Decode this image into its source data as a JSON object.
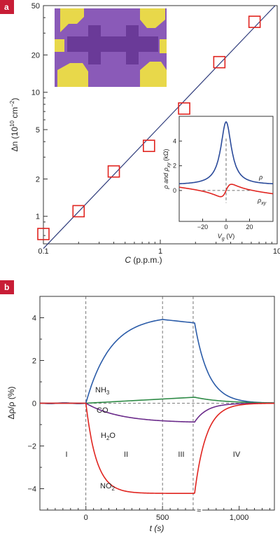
{
  "colors": {
    "badge": "#c81d36",
    "squares": "#e0241f",
    "fitline": "#2d3a7a",
    "nh3": "#2a5ba8",
    "co": "#2e8a46",
    "h2o": "#6a2a8a",
    "no2": "#e0241f",
    "inset_rho": "#2a4a9a",
    "inset_rhoxy": "#e0241f",
    "photo_bg": "#8a5ab8",
    "photo_dark": "#6a3a98",
    "photo_gold": "#e8d84a"
  },
  "chart_data": [
    {
      "panel": "a",
      "type": "scatter",
      "xscale": "log",
      "yscale": "log",
      "xlim": [
        0.1,
        10
      ],
      "ylim": [
        0.6,
        50
      ],
      "xlabel_main": "C",
      "xlabel_unit": "(p.p.m.)",
      "ylabel_main": "Δn",
      "ylabel_unit": "(10",
      "ylabel_exp": "10",
      "ylabel_tail": "cm",
      "ylabel_exp2": "−2",
      "ylabel_close": ")",
      "xticks": [
        {
          "value": 0.1,
          "label": "0.1"
        },
        {
          "value": 1,
          "label": "1"
        },
        {
          "value": 10,
          "label": "10"
        }
      ],
      "yticks": [
        {
          "value": 1,
          "label": "1"
        },
        {
          "value": 2,
          "label": "2"
        },
        {
          "value": 5,
          "label": "5"
        },
        {
          "value": 10,
          "label": "10"
        },
        {
          "value": 20,
          "label": "20"
        },
        {
          "value": 50,
          "label": "50"
        }
      ],
      "points": [
        {
          "x": 0.1,
          "y": 0.72
        },
        {
          "x": 0.2,
          "y": 1.1
        },
        {
          "x": 0.4,
          "y": 2.3
        },
        {
          "x": 0.8,
          "y": 3.7
        },
        {
          "x": 1.6,
          "y": 7.4
        },
        {
          "x": 3.2,
          "y": 17.5
        },
        {
          "x": 6.4,
          "y": 37
        }
      ],
      "fit_line": [
        {
          "x": 0.1,
          "y": 0.55
        },
        {
          "x": 9.6,
          "y": 50
        }
      ],
      "inset": {
        "type": "line",
        "xlim": [
          -40,
          40
        ],
        "ylim": [
          -2.5,
          6
        ],
        "xlabel_main": "V",
        "xlabel_sub": "g",
        "xlabel_unit": "(V)",
        "ylabel_main": "ρ and ρ",
        "ylabel_sub": "xy",
        "ylabel_unit": "(kΩ)",
        "xticks": [
          {
            "value": -20,
            "label": "−20"
          },
          {
            "value": 0,
            "label": "0"
          },
          {
            "value": 20,
            "label": "20"
          }
        ],
        "yticks": [
          {
            "value": 0,
            "label": "0"
          },
          {
            "value": 2,
            "label": "2"
          },
          {
            "value": 4,
            "label": "4"
          }
        ],
        "series": [
          {
            "name": "ρ",
            "sub": ""
          },
          {
            "name": "ρ",
            "sub": "xy"
          }
        ]
      }
    },
    {
      "panel": "b",
      "type": "line",
      "xlim": [
        -300,
        1230
      ],
      "ylim": [
        -5,
        5
      ],
      "xlabel": "t (s)",
      "ylabel": "Δρ/ρ (%)",
      "xticks": [
        {
          "value": 0,
          "label": "0"
        },
        {
          "value": 500,
          "label": "500"
        },
        {
          "value": 1000,
          "label": "1,000"
        }
      ],
      "yticks": [
        {
          "value": -4,
          "label": "−4"
        },
        {
          "value": -2,
          "label": "−2"
        },
        {
          "value": 0,
          "label": "0"
        },
        {
          "value": 2,
          "label": "2"
        },
        {
          "value": 4,
          "label": "4"
        }
      ],
      "break_marker": "≈",
      "region_labels": [
        "I",
        "II",
        "III",
        "IV"
      ],
      "series": [
        {
          "name": "NH",
          "sub": "3"
        },
        {
          "name": "CO",
          "sub": ""
        },
        {
          "name": "H",
          "sub": "2",
          "tail": "O"
        },
        {
          "name": "NO",
          "sub": "2"
        }
      ]
    }
  ],
  "badges": {
    "a": "a",
    "b": "b"
  }
}
